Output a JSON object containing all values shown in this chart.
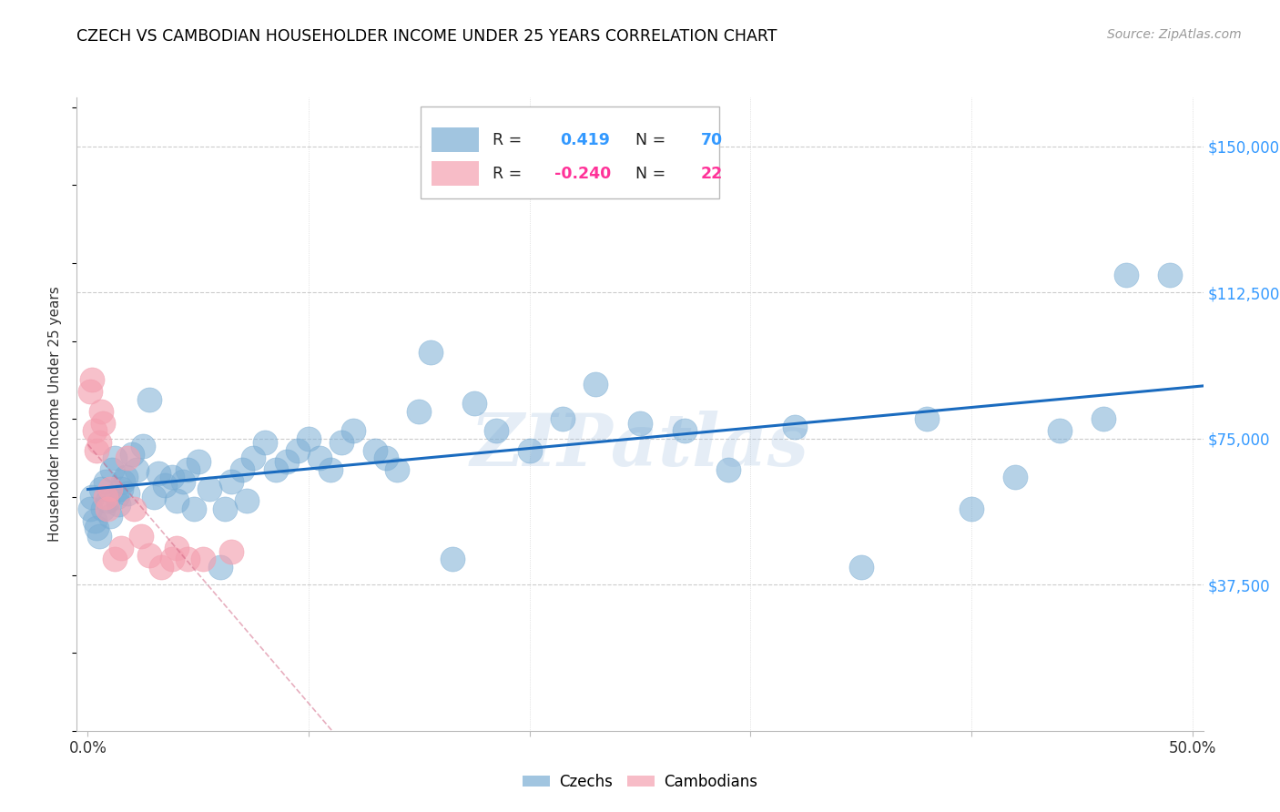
{
  "title": "CZECH VS CAMBODIAN HOUSEHOLDER INCOME UNDER 25 YEARS CORRELATION CHART",
  "source": "Source: ZipAtlas.com",
  "ylabel": "Householder Income Under 25 years",
  "xlim": [
    -0.005,
    0.505
  ],
  "ylim": [
    0,
    162500
  ],
  "yticks": [
    37500,
    75000,
    112500,
    150000
  ],
  "ytick_labels": [
    "$37,500",
    "$75,000",
    "$112,500",
    "$150,000"
  ],
  "xticks": [
    0.0,
    0.1,
    0.2,
    0.3,
    0.4,
    0.5
  ],
  "xtick_labels": [
    "0.0%",
    "",
    "",
    "",
    "",
    "50.0%"
  ],
  "czech_color": "#7aadd4",
  "cambodian_color": "#f4a0b0",
  "czech_R": 0.419,
  "czech_N": 70,
  "cambodian_R": -0.24,
  "cambodian_N": 22,
  "trend_blue": "#1a6bbf",
  "trend_pink": "#d06080",
  "watermark": "ZIPatlas",
  "czech_x": [
    0.001,
    0.002,
    0.003,
    0.004,
    0.005,
    0.006,
    0.007,
    0.008,
    0.009,
    0.01,
    0.011,
    0.012,
    0.013,
    0.014,
    0.015,
    0.016,
    0.017,
    0.018,
    0.02,
    0.022,
    0.025,
    0.028,
    0.03,
    0.032,
    0.035,
    0.038,
    0.04,
    0.043,
    0.045,
    0.048,
    0.05,
    0.055,
    0.06,
    0.062,
    0.065,
    0.07,
    0.072,
    0.075,
    0.08,
    0.085,
    0.09,
    0.095,
    0.1,
    0.105,
    0.11,
    0.115,
    0.12,
    0.13,
    0.135,
    0.14,
    0.15,
    0.155,
    0.165,
    0.175,
    0.185,
    0.2,
    0.215,
    0.23,
    0.25,
    0.27,
    0.29,
    0.32,
    0.35,
    0.38,
    0.4,
    0.42,
    0.44,
    0.46,
    0.47,
    0.49
  ],
  "czech_y": [
    57000,
    60000,
    54000,
    52000,
    50000,
    62000,
    57000,
    64000,
    59000,
    55000,
    67000,
    70000,
    60000,
    58000,
    62000,
    64000,
    65000,
    61000,
    71000,
    67000,
    73000,
    85000,
    60000,
    66000,
    63000,
    65000,
    59000,
    64000,
    67000,
    57000,
    69000,
    62000,
    42000,
    57000,
    64000,
    67000,
    59000,
    70000,
    74000,
    67000,
    69000,
    72000,
    75000,
    70000,
    67000,
    74000,
    77000,
    72000,
    70000,
    67000,
    82000,
    97000,
    44000,
    84000,
    77000,
    72000,
    80000,
    89000,
    79000,
    77000,
    67000,
    78000,
    42000,
    80000,
    57000,
    65000,
    77000,
    80000,
    117000,
    117000
  ],
  "cambodian_x": [
    0.001,
    0.002,
    0.003,
    0.004,
    0.005,
    0.006,
    0.007,
    0.008,
    0.009,
    0.01,
    0.012,
    0.015,
    0.018,
    0.021,
    0.024,
    0.028,
    0.033,
    0.038,
    0.04,
    0.045,
    0.052,
    0.065
  ],
  "cambodian_y": [
    87000,
    90000,
    77000,
    72000,
    74000,
    82000,
    79000,
    60000,
    57000,
    62000,
    44000,
    47000,
    70000,
    57000,
    50000,
    45000,
    42000,
    44000,
    47000,
    44000,
    44000,
    46000
  ]
}
